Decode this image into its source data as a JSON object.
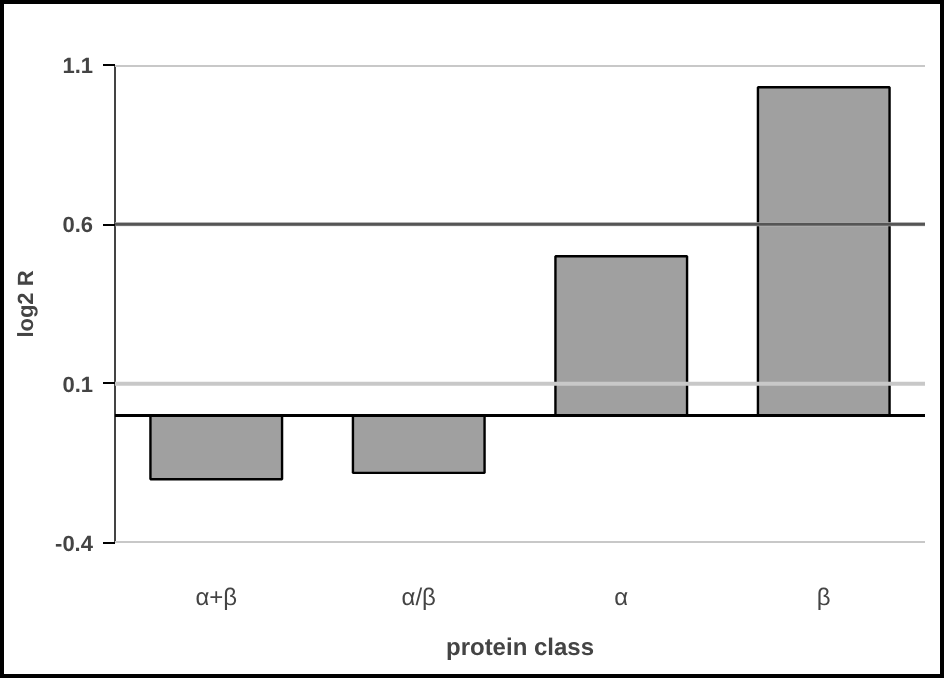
{
  "chart_data": {
    "type": "bar",
    "xlabel": "protein class",
    "ylabel": "log2 R",
    "categories": [
      "α+β",
      "α/β",
      "α",
      "β"
    ],
    "values": [
      -0.2,
      -0.18,
      0.5,
      1.03
    ],
    "color": "#a0a0a0",
    "ylim": [
      -0.4,
      1.1
    ],
    "yticks": [
      -0.4,
      0.1,
      0.6,
      1.1
    ],
    "grid": "y",
    "ref_lines": [
      {
        "axis": "y",
        "value": 0,
        "color": "#000000"
      },
      {
        "axis": "y",
        "value": 0.6,
        "color": "#555555"
      }
    ]
  }
}
